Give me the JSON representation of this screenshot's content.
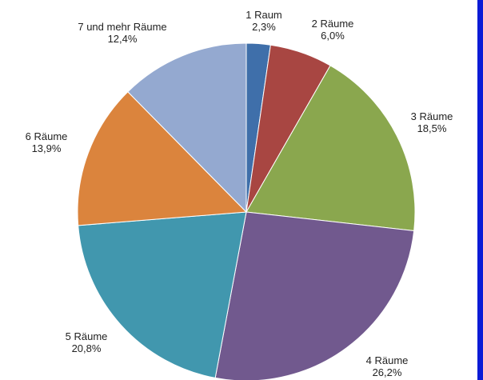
{
  "chart_data": {
    "type": "pie",
    "start_angle_deg": 0,
    "direction": "clockwise",
    "slices": [
      {
        "label": "1 Raum",
        "value_text": "2,3%",
        "value": 2.3,
        "color": "#3F6FAA"
      },
      {
        "label": "2 Räume",
        "value_text": "6,0%",
        "value": 6.0,
        "color": "#A84642"
      },
      {
        "label": "3 Räume",
        "value_text": "18,5%",
        "value": 18.5,
        "color": "#8AA74E"
      },
      {
        "label": "4 Räume",
        "value_text": "26,2%",
        "value": 26.2,
        "color": "#71598E"
      },
      {
        "label": "5 Räume",
        "value_text": "20,8%",
        "value": 20.8,
        "color": "#4197AE"
      },
      {
        "label": "6 Räume",
        "value_text": "13,9%",
        "value": 13.9,
        "color": "#DB843D"
      },
      {
        "label": "7 und mehr Räume",
        "value_text": "12,4%",
        "value": 12.4,
        "color": "#94A9D0"
      }
    ]
  },
  "colors": {
    "edge_accent": "#0B1BD6",
    "background": "#FFFFFF"
  }
}
